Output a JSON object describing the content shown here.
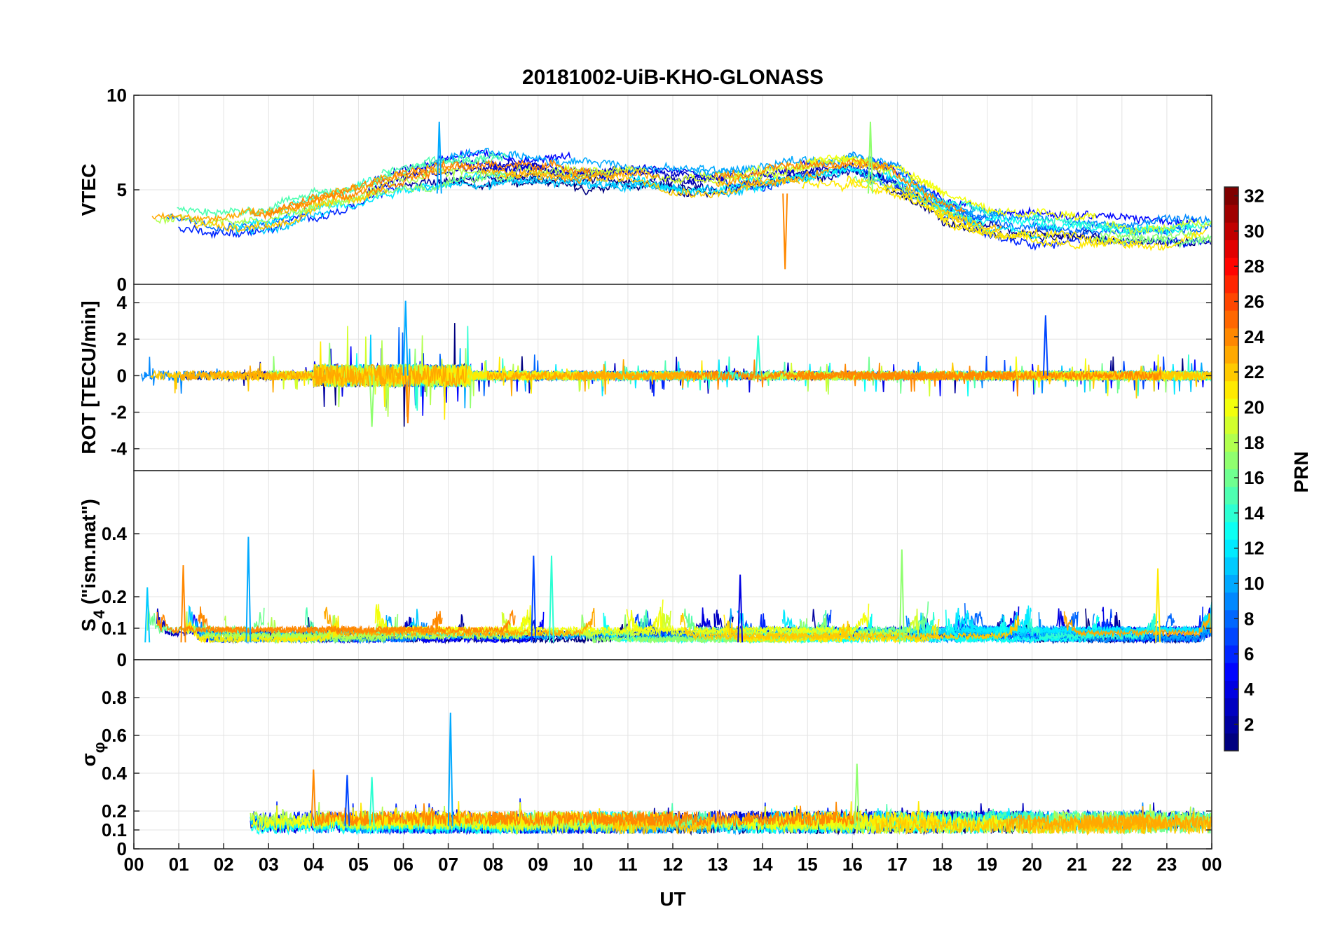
{
  "chart_data": {
    "type": "line",
    "title": "20181002-UiB-KHO-GLONASS",
    "xlabel": "UT",
    "x_ticks": [
      "00",
      "01",
      "02",
      "03",
      "04",
      "05",
      "06",
      "07",
      "08",
      "09",
      "10",
      "11",
      "12",
      "13",
      "14",
      "15",
      "16",
      "17",
      "18",
      "19",
      "20",
      "21",
      "22",
      "23",
      "00"
    ],
    "xlim": [
      0,
      24
    ],
    "grid": true,
    "colorbar": {
      "label": "PRN",
      "range": [
        1,
        32
      ],
      "ticks": [
        "2",
        "4",
        "6",
        "8",
        "10",
        "12",
        "14",
        "16",
        "18",
        "20",
        "22",
        "24",
        "26",
        "28",
        "30",
        "32"
      ],
      "colormap": "jet"
    },
    "panels": [
      {
        "ylabel": "VTEC",
        "ylim": [
          0,
          10
        ],
        "y_ticks": [
          "0",
          "5",
          "10"
        ],
        "y_tick_values": [
          0,
          5,
          10
        ],
        "baseline": 4.8,
        "daily_profile": [
          [
            0,
            3.6
          ],
          [
            2,
            3.4
          ],
          [
            3,
            3.5
          ],
          [
            4,
            4.2
          ],
          [
            5,
            4.8
          ],
          [
            6,
            5.6
          ],
          [
            7,
            5.9
          ],
          [
            8,
            6.0
          ],
          [
            9,
            6.0
          ],
          [
            10,
            5.9
          ],
          [
            11,
            5.9
          ],
          [
            12,
            5.6
          ],
          [
            13,
            5.4
          ],
          [
            14,
            5.6
          ],
          [
            15,
            5.9
          ],
          [
            16,
            6.2
          ],
          [
            17,
            5.6
          ],
          [
            18,
            4.2
          ],
          [
            19,
            3.5
          ],
          [
            20,
            3.2
          ],
          [
            21,
            3.0
          ],
          [
            22,
            2.8
          ],
          [
            23,
            2.8
          ],
          [
            24,
            3.0
          ]
        ],
        "noise": 0.35,
        "notable_peaks": [
          {
            "x": 6.8,
            "y": 8.6
          },
          {
            "x": 16.4,
            "y": 8.6
          },
          {
            "x": 14.5,
            "y": 0.8
          }
        ]
      },
      {
        "ylabel": "ROT [TECU/min]",
        "ylim": [
          -5.2,
          5
        ],
        "y_ticks": [
          "-4",
          "-2",
          "0",
          "2",
          "4"
        ],
        "y_tick_values": [
          -4,
          -2,
          0,
          2,
          4
        ],
        "baseline": 0,
        "noise": 0.25,
        "notable_peaks": [
          {
            "x": 6.05,
            "y": 4.1
          },
          {
            "x": 5.3,
            "y": -2.8
          },
          {
            "x": 6.1,
            "y": -2.6
          },
          {
            "x": 20.3,
            "y": 3.3
          },
          {
            "x": 13.9,
            "y": 2.2
          }
        ]
      },
      {
        "ylabel": "S4 (\"ism.mat\")",
        "ylabel_main": "S",
        "ylabel_sub": "4",
        "ylabel_rest": " (\"ism.mat\")",
        "ylim": [
          0,
          0.6
        ],
        "y_ticks": [
          "0",
          "0.1",
          "0.2",
          "0.4"
        ],
        "y_tick_values": [
          0,
          0.1,
          0.2,
          0.4
        ],
        "extra_tick": "0",
        "baseline": 0.055,
        "noise": 0.02,
        "notable_peaks": [
          {
            "x": 2.55,
            "y": 0.39
          },
          {
            "x": 17.1,
            "y": 0.35
          },
          {
            "x": 1.1,
            "y": 0.3
          },
          {
            "x": 8.9,
            "y": 0.33
          },
          {
            "x": 9.3,
            "y": 0.33
          },
          {
            "x": 22.8,
            "y": 0.29
          },
          {
            "x": 13.5,
            "y": 0.27
          },
          {
            "x": 0.3,
            "y": 0.23
          }
        ]
      },
      {
        "ylabel": "σφ",
        "ylabel_main": "σ",
        "ylabel_sub": "φ",
        "ylim": [
          0,
          1
        ],
        "y_ticks": [
          "0",
          "0.1",
          "0.2",
          "0.4",
          "0.6",
          "0.8"
        ],
        "y_tick_values": [
          0,
          0.1,
          0.2,
          0.4,
          0.6,
          0.8
        ],
        "baseline": 0.12,
        "noise": 0.04,
        "notable_peaks": [
          {
            "x": 7.05,
            "y": 0.72
          },
          {
            "x": 16.1,
            "y": 0.45
          },
          {
            "x": 4.0,
            "y": 0.42
          },
          {
            "x": 4.75,
            "y": 0.39
          },
          {
            "x": 5.3,
            "y": 0.38
          }
        ]
      }
    ]
  }
}
